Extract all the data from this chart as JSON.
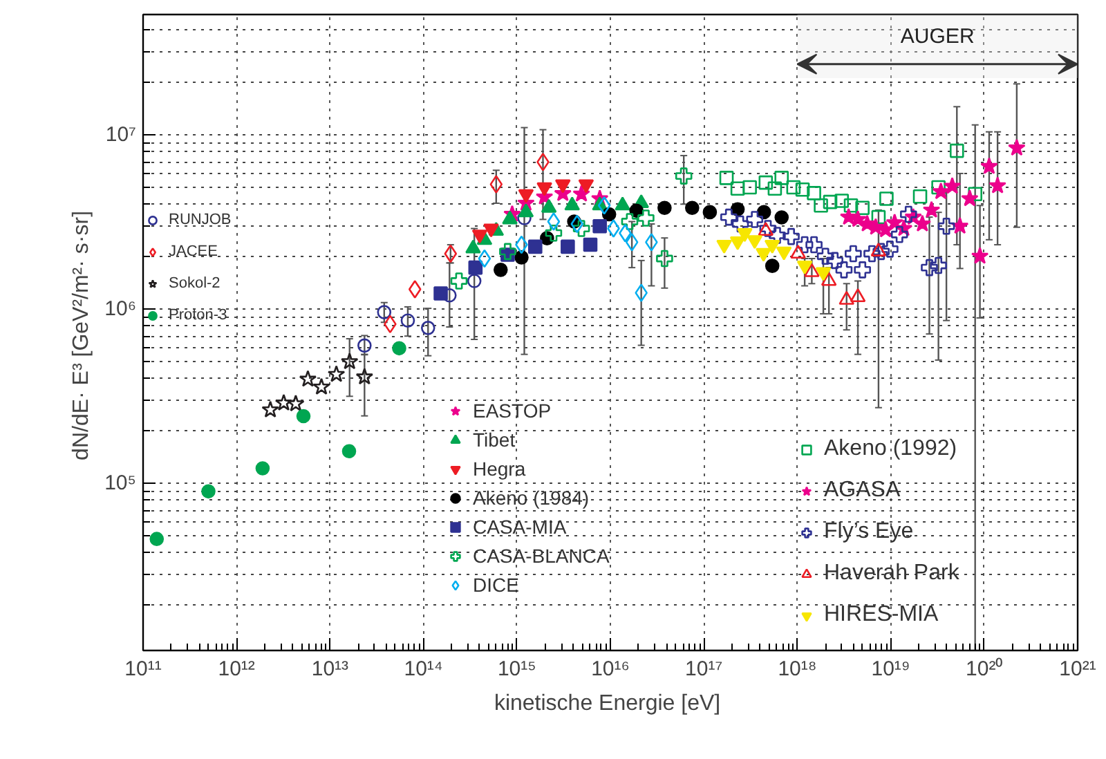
{
  "chart_data": {
    "type": "scatter",
    "log": "xy",
    "grid": true,
    "legend": "bottom",
    "xlabel": "kinetische Energie  [eV]",
    "ylabel": "dN/dE· E³  [GeV²/m²· s·sr]",
    "xlim": [
      100000000000.0,
      1e+21
    ],
    "ylim": [
      11000.0,
      49000000.0
    ],
    "xticks": [
      {
        "value": 100000000000.0,
        "label": "10¹¹"
      },
      {
        "value": 1000000000000.0,
        "label": "10¹²"
      },
      {
        "value": 10000000000000.0,
        "label": "10¹³"
      },
      {
        "value": 100000000000000.0,
        "label": "10¹⁴"
      },
      {
        "value": 1000000000000000.0,
        "label": "10¹⁵"
      },
      {
        "value": 1e+16,
        "label": "10¹⁶"
      },
      {
        "value": 1e+17,
        "label": "10¹⁷"
      },
      {
        "value": 1e+18,
        "label": "10¹⁸"
      },
      {
        "value": 1e+19,
        "label": "10¹⁹"
      },
      {
        "value": 1e+20,
        "label": "10²⁰"
      },
      {
        "value": 1e+21,
        "label": "10²¹"
      }
    ],
    "yticks": [
      {
        "value": 100000.0,
        "label": "10⁵"
      },
      {
        "value": 1000000.0,
        "label": "10⁶"
      },
      {
        "value": 10000000.0,
        "label": "10⁷"
      }
    ],
    "bands": [
      {
        "axis": "x",
        "from": 1e+18,
        "to": 1e+21,
        "label": "AUGER"
      }
    ],
    "series": [
      {
        "name": "RUNJOB",
        "color": "#2e3192",
        "marker": "circle_open",
        "x": [
          23400000000000.0,
          38000000000000.0,
          68000000000000.0,
          112000000000000.0,
          190000000000000.0,
          350000000000000.0,
          1200000000000000.0
        ],
        "values": [
          618000.0,
          960000.0,
          860000.0,
          780000.0,
          1200000.0,
          1450000.0,
          3330000.0
        ],
        "errors": [
          [
            550000.0,
            705000.0
          ],
          [
            840000.0,
            1090000.0
          ],
          [
            700000.0,
            1030000.0
          ],
          [
            540000.0,
            1010000.0
          ],
          [
            790000.0,
            1840000.0
          ],
          [
            670000.0,
            2900000.0
          ],
          [
            550000.0,
            11000000.0
          ]
        ]
      },
      {
        "name": "JACEE",
        "color": "#ed1c24",
        "marker": "diamond_open",
        "x": [
          44000000000000.0,
          81000000000000.0,
          195000000000000.0,
          600000000000000.0,
          1900000000000000.0
        ],
        "values": [
          820000.0,
          1300000.0,
          2080000.0,
          5200000.0,
          6980000.0
        ],
        "errors": [
          null,
          null,
          [
            1840000.0,
            2340000.0
          ],
          [
            4050000.0,
            6260000.0
          ],
          [
            3270000.0,
            10700000.0
          ]
        ]
      },
      {
        "name": "Sokol-2",
        "color": "#231f20",
        "marker": "star_open",
        "x": [
          2300000000000.0,
          3200000000000.0,
          4300000000000.0,
          5800000000000.0,
          8100000000000.0,
          11700000000000.0,
          16200000000000.0,
          23400000000000.0
        ],
        "values": [
          264000.0,
          289000.0,
          286000.0,
          396000.0,
          357000.0,
          422000.0,
          499000.0,
          408000.0
        ],
        "errors": [
          null,
          null,
          null,
          null,
          null,
          null,
          [
            316000.0,
            676000.0
          ],
          [
            244000.0,
            547000.0
          ]
        ]
      },
      {
        "name": "Proton-3",
        "color": "#00a651",
        "marker": "circle",
        "x": [
          140000000000.0,
          500000000000.0,
          1900000000000.0,
          5200000000000.0,
          16000000000000.0,
          55000000000000.0
        ],
        "values": [
          48000.0,
          90000.0,
          122000.0,
          243000.0,
          153000.0,
          596000.0
        ]
      },
      {
        "name": "EASTOP",
        "color": "#ec008c",
        "marker": "star",
        "x": [
          890000000000000.0,
          1250000000000000.0,
          1970000000000000.0,
          3100000000000000.0,
          4900000000000000.0,
          7700000000000000.0
        ],
        "values": [
          3500000.0,
          4050000.0,
          4400000.0,
          4600000.0,
          4570000.0,
          4300000.0
        ]
      },
      {
        "name": "Tibet",
        "color": "#00a651",
        "marker": "triangle",
        "x": [
          340000000000000.0,
          450000000000000.0,
          600000000000000.0,
          840000000000000.0,
          1250000000000000.0,
          2200000000000000.0,
          3900000000000000.0,
          7700000000000000.0,
          1.35e+16,
          2.14e+16
        ],
        "values": [
          2230000.0,
          2490000.0,
          2810000.0,
          3270000.0,
          3590000.0,
          3810000.0,
          3930000.0,
          3930000.0,
          3930000.0,
          4050000.0
        ]
      },
      {
        "name": "Hegra",
        "color": "#ed1c24",
        "marker": "triangle_down",
        "x": [
          400000000000000.0,
          530000000000000.0,
          1250000000000000.0,
          1970000000000000.0,
          3100000000000000.0,
          5500000000000000.0
        ],
        "values": [
          2680000.0,
          2900000.0,
          4570000.0,
          5000000.0,
          5200000.0,
          5200000.0
        ]
      },
      {
        "name": "Akeno (1984)",
        "color": "#000000",
        "marker": "circle",
        "x": [
          670000000000000.0,
          1120000000000000.0,
          2100000000000000.0,
          4100000000000000.0,
          9700000000000000.0,
          1.9e+16,
          3.8e+16,
          7.5e+16,
          1.16e+17,
          2.3e+17,
          3.5e+17,
          4.4e+17,
          5.4e+17,
          6.8e+17
        ],
        "values": [
          1680000.0,
          1980000.0,
          2550000.0,
          3180000.0,
          3500000.0,
          3670000.0,
          3810000.0,
          3810000.0,
          3600000.0,
          3740000.0,
          null,
          3600000.0,
          1770000.0,
          3360000.0
        ]
      },
      {
        "name": "CASA-MIA",
        "color": "#2e3192",
        "marker": "square",
        "x": [
          153000000000000.0,
          360000000000000.0,
          796000000000000.0,
          1570000000000000.0,
          3500000000000000.0,
          6100000000000000.0,
          7700000000000000.0
        ],
        "values": [
          1230000.0,
          1730000.0,
          2050000.0,
          2280000.0,
          2280000.0,
          2340000.0,
          2990000.0
        ]
      },
      {
        "name": "CASA-BLANCA",
        "color": "#00a651",
        "marker": "cross_open",
        "x": [
          240000000000000.0,
          796000000000000.0,
          2470000000000000.0,
          4900000000000000.0,
          1.61e+16,
          2.4e+16,
          3.8e+16,
          6.1e+16
        ],
        "values": [
          1450000.0,
          2140000.0,
          2730000.0,
          2900000.0,
          3180000.0,
          3330000.0,
          1950000.0,
          5800000.0
        ],
        "errors": [
          null,
          null,
          null,
          null,
          null,
          null,
          [
            1320000.0,
            2560000.0
          ],
          [
            4000000.0,
            7600000.0
          ]
        ]
      },
      {
        "name": "DICE",
        "color": "#00aeef",
        "marker": "diamond_open",
        "x": [
          450000000000000.0,
          1120000000000000.0,
          2470000000000000.0,
          4400000000000000.0,
          8600000000000000.0,
          1.08e+16,
          1.44e+16,
          1.7e+16,
          2.14e+16,
          2.75e+16
        ],
        "values": [
          1950000.0,
          2340000.0,
          3180000.0,
          3080000.0,
          3930000.0,
          2900000.0,
          2730000.0,
          2420000.0,
          1240000.0,
          2420000.0
        ],
        "errors": [
          null,
          null,
          null,
          null,
          null,
          null,
          null,
          [
            1730000.0,
            3180000.0
          ],
          [
            620000.0,
            1900000.0
          ],
          [
            1360000.0,
            3080000.0
          ]
        ]
      },
      {
        "name": "Akeno (1992)",
        "color": "#00a651",
        "marker": "square_open",
        "x": [
          1.75e+17,
          2.3e+17,
          3.1e+17,
          4.6e+17,
          5.75e+17,
          6.8e+17,
          9.1e+17,
          1.14e+18,
          1.51e+18,
          1.79e+18,
          2.25e+18,
          2.99e+18,
          3.75e+18,
          4.98e+18,
          7.4e+18,
          9e+18,
          2.06e+19,
          3.24e+19,
          5.1e+19,
          8e+19
        ],
        "values": [
          5660000.0,
          4920000.0,
          5000000.0,
          5320000.0,
          4920000.0,
          5660000.0,
          5000000.0,
          4850000.0,
          4630000.0,
          3930000.0,
          4120000.0,
          4180000.0,
          3930000.0,
          3810000.0,
          3370000.0,
          4300000.0,
          4430000.0,
          5000000.0,
          8100000.0,
          4570000.0
        ],
        "errors": [
          null,
          null,
          null,
          null,
          null,
          null,
          null,
          null,
          null,
          null,
          null,
          null,
          null,
          null,
          null,
          null,
          null,
          null,
          [
            2340000.0,
            14500000.0
          ],
          [
            11000.0,
            11400000.0
          ]
        ]
      },
      {
        "name": "AGASA",
        "color": "#ec008c",
        "marker": "star",
        "x": [
          3.54e+18,
          4.45e+18,
          5.6e+18,
          6.9e+18,
          8.8e+18,
          1.1e+19,
          1.38e+19,
          1.74e+19,
          2.18e+19,
          2.73e+19,
          3.44e+19,
          4.55e+19,
          5.5e+19,
          7e+19,
          9e+19,
          1.13e+20,
          1.39e+20,
          2.23e+20
        ],
        "values": [
          3370000.0,
          3270000.0,
          3080000.0,
          2950000.0,
          2850000.0,
          3130000.0,
          2900000.0,
          3370000.0,
          3080000.0,
          3700000.0,
          4720000.0,
          5070000.0,
          2990000.0,
          4300000.0,
          2010000.0,
          6580000.0,
          5100000.0,
          8400000.0
        ],
        "errors": [
          null,
          null,
          null,
          null,
          null,
          null,
          null,
          null,
          null,
          null,
          null,
          null,
          [
            1710000.0,
            6000000.0
          ],
          null,
          [
            890000.0,
            3930000.0
          ],
          [
            2500000.0,
            10400000.0
          ],
          [
            2340000.0,
            10400000.0
          ],
          [
            2950000.0,
            19600000.0
          ]
        ]
      },
      {
        "name": "Fly’s Eye",
        "color": "#2e3192",
        "marker": "cross_open",
        "x": [
          1.85e+17,
          2.46e+17,
          3.5e+17,
          4.85e+17,
          6.1e+17,
          8.6e+17,
          1.2e+18,
          1.51e+18,
          2e+18,
          2.52e+18,
          3.16e+18,
          3.97e+18,
          4.98e+18,
          6.3e+18,
          7.9e+18,
          9.8e+18,
          1.24e+19,
          1.55e+19,
          2.59e+19,
          3.24e+19,
          3.94e+19
        ],
        "values": [
          3370000.0,
          3080000.0,
          3270000.0,
          2900000.0,
          2650000.0,
          2610000.0,
          2340000.0,
          2340000.0,
          2010000.0,
          1900000.0,
          1680000.0,
          2080000.0,
          1680000.0,
          2080000.0,
          2140000.0,
          2210000.0,
          2680000.0,
          3500000.0,
          1730000.0,
          1780000.0,
          2990000.0
        ],
        "errors": [
          null,
          null,
          null,
          null,
          null,
          null,
          null,
          null,
          null,
          null,
          null,
          null,
          null,
          null,
          null,
          null,
          null,
          null,
          [
            720000.0,
            3370000.0
          ],
          [
            510000.0,
            3590000.0
          ],
          [
            860000.0,
            4850000.0
          ]
        ]
      },
      {
        "name": "Haverah Park",
        "color": "#ed1c24",
        "marker": "triangle_open",
        "x": [
          4.6e+17,
          1.02e+18,
          1.43e+18,
          2.18e+18,
          3.37e+18,
          4.45e+18,
          7.4e+18
        ],
        "values": [
          2810000.0,
          2080000.0,
          1630000.0,
          1450000.0,
          1130000.0,
          1170000.0,
          2140000.0
        ],
        "errors": [
          null,
          null,
          [
            1400000.0,
            1950000.0
          ],
          [
            940000.0,
            1730000.0
          ],
          [
            760000.0,
            1400000.0
          ],
          [
            550000.0,
            1450000.0
          ],
          [
            272000.0,
            3700000.0
          ]
        ]
      },
      {
        "name": "HIRES-MIA",
        "color": "#f7e600",
        "marker": "triangle_down",
        "x": [
          1.65e+17,
          2.3e+17,
          2.74e+17,
          3.5e+17,
          4.35e+17,
          5.4e+17,
          7.2e+17,
          1.2e+18,
          1.9e+18
        ],
        "values": [
          2340000.0,
          2450000.0,
          2730000.0,
          2490000.0,
          2100000.0,
          2340000.0,
          2140000.0,
          1780000.0,
          1630000.0
        ],
        "errors": [
          null,
          null,
          null,
          null,
          null,
          null,
          null,
          [
            1360000.0,
            1950000.0
          ],
          [
            940000.0,
            1950000.0
          ]
        ]
      }
    ]
  }
}
